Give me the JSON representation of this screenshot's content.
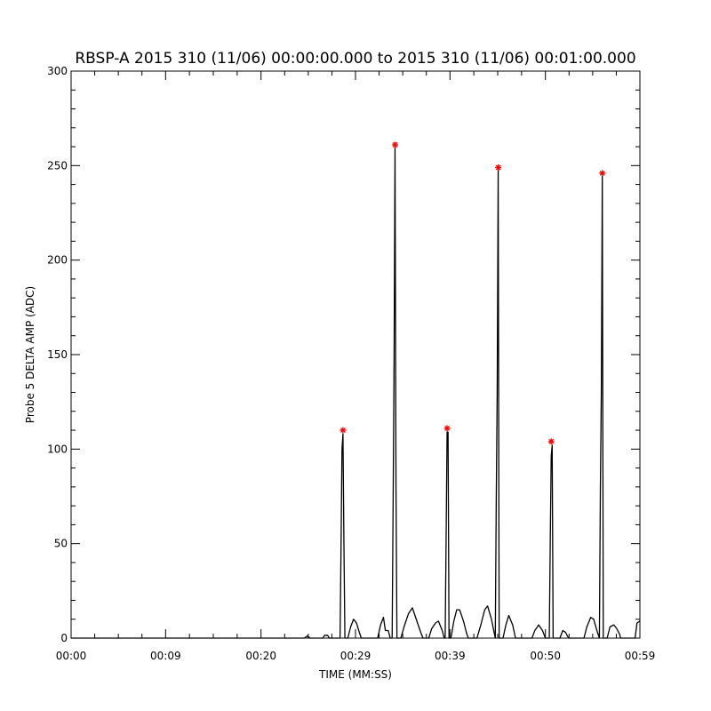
{
  "chart_data": {
    "type": "line",
    "title": "RBSP-A 2015 310 (11/06) 00:00:00.000 to 2015 310 (11/06) 00:01:00.000",
    "xlabel": "TIME (MM:SS)",
    "ylabel": "Probe 5 DELTA AMP (ADC)",
    "xlim": [
      0,
      59
    ],
    "ylim": [
      0,
      300
    ],
    "x_tick_values": [
      0,
      9.8,
      19.7,
      29.5,
      39.3,
      49.2,
      59
    ],
    "x_tick_labels": [
      "00:00",
      "00:09",
      "00:20",
      "00:29",
      "00:39",
      "00:50",
      "00:59"
    ],
    "y_ticks": [
      0,
      50,
      100,
      150,
      200,
      250,
      300
    ],
    "grid": false,
    "series": [
      {
        "style": "line",
        "color": "#000000",
        "points": [
          [
            0,
            0
          ],
          [
            24.2,
            0
          ],
          [
            24.5,
            1.2
          ],
          [
            24.8,
            0
          ],
          [
            26.1,
            0
          ],
          [
            26.3,
            1.5
          ],
          [
            26.6,
            1.5
          ],
          [
            26.8,
            0
          ],
          [
            27.9,
            0
          ],
          [
            28.0,
            48
          ],
          [
            28.1,
            100
          ],
          [
            28.2,
            108
          ],
          [
            28.3,
            50
          ],
          [
            28.4,
            0
          ],
          [
            28.7,
            0
          ],
          [
            29.0,
            6
          ],
          [
            29.3,
            10
          ],
          [
            29.6,
            8
          ],
          [
            29.9,
            3
          ],
          [
            30.1,
            0
          ],
          [
            31.8,
            0
          ],
          [
            32.1,
            7
          ],
          [
            32.4,
            11
          ],
          [
            32.6,
            4
          ],
          [
            32.9,
            4
          ],
          [
            33.1,
            0
          ],
          [
            33.3,
            0
          ],
          [
            33.4,
            70
          ],
          [
            33.5,
            145
          ],
          [
            33.6,
            260
          ],
          [
            33.7,
            80
          ],
          [
            33.8,
            0
          ],
          [
            34.2,
            0
          ],
          [
            34.6,
            7
          ],
          [
            35.0,
            13
          ],
          [
            35.4,
            16
          ],
          [
            35.8,
            10
          ],
          [
            36.2,
            4
          ],
          [
            36.5,
            0
          ],
          [
            37.1,
            0
          ],
          [
            37.4,
            5
          ],
          [
            37.8,
            8
          ],
          [
            38.1,
            9
          ],
          [
            38.5,
            4
          ],
          [
            38.7,
            0
          ],
          [
            38.8,
            0
          ],
          [
            38.9,
            53
          ],
          [
            39.0,
            109
          ],
          [
            39.1,
            109
          ],
          [
            39.2,
            0
          ],
          [
            39.4,
            0
          ],
          [
            39.7,
            9
          ],
          [
            40.0,
            15
          ],
          [
            40.3,
            15
          ],
          [
            40.7,
            9
          ],
          [
            41.0,
            3
          ],
          [
            41.2,
            0
          ],
          [
            42.1,
            0
          ],
          [
            42.5,
            7
          ],
          [
            42.9,
            15
          ],
          [
            43.2,
            17
          ],
          [
            43.6,
            10
          ],
          [
            44.0,
            0
          ],
          [
            44.0,
            0
          ],
          [
            44.1,
            73
          ],
          [
            44.2,
            132
          ],
          [
            44.3,
            248
          ],
          [
            44.4,
            0
          ],
          [
            44.8,
            0
          ],
          [
            45.1,
            7
          ],
          [
            45.4,
            12
          ],
          [
            45.8,
            7
          ],
          [
            46.1,
            0
          ],
          [
            47.8,
            0
          ],
          [
            48.1,
            4
          ],
          [
            48.5,
            7
          ],
          [
            48.9,
            4
          ],
          [
            49.2,
            0
          ],
          [
            49.6,
            0
          ],
          [
            49.7,
            50
          ],
          [
            49.8,
            96
          ],
          [
            49.9,
            102
          ],
          [
            50.0,
            0
          ],
          [
            50.7,
            0
          ],
          [
            51.0,
            4
          ],
          [
            51.3,
            3
          ],
          [
            51.6,
            0
          ],
          [
            53.2,
            0
          ],
          [
            53.5,
            6
          ],
          [
            53.9,
            11
          ],
          [
            54.2,
            10
          ],
          [
            54.6,
            3
          ],
          [
            54.8,
            0
          ],
          [
            54.8,
            0
          ],
          [
            54.9,
            80
          ],
          [
            55.0,
            130
          ],
          [
            55.1,
            245
          ],
          [
            55.2,
            0
          ],
          [
            55.6,
            0
          ],
          [
            55.9,
            6
          ],
          [
            56.3,
            7
          ],
          [
            56.6,
            5
          ],
          [
            56.9,
            2
          ],
          [
            57.0,
            0
          ],
          [
            58.5,
            0
          ],
          [
            58.7,
            8
          ],
          [
            59,
            9
          ]
        ]
      },
      {
        "style": "markers",
        "marker": "asterisk",
        "color": "#ff0000",
        "points": [
          [
            28.2,
            110
          ],
          [
            33.6,
            261
          ],
          [
            39.0,
            111
          ],
          [
            44.3,
            249
          ],
          [
            49.8,
            104
          ],
          [
            55.1,
            246
          ]
        ]
      }
    ]
  }
}
